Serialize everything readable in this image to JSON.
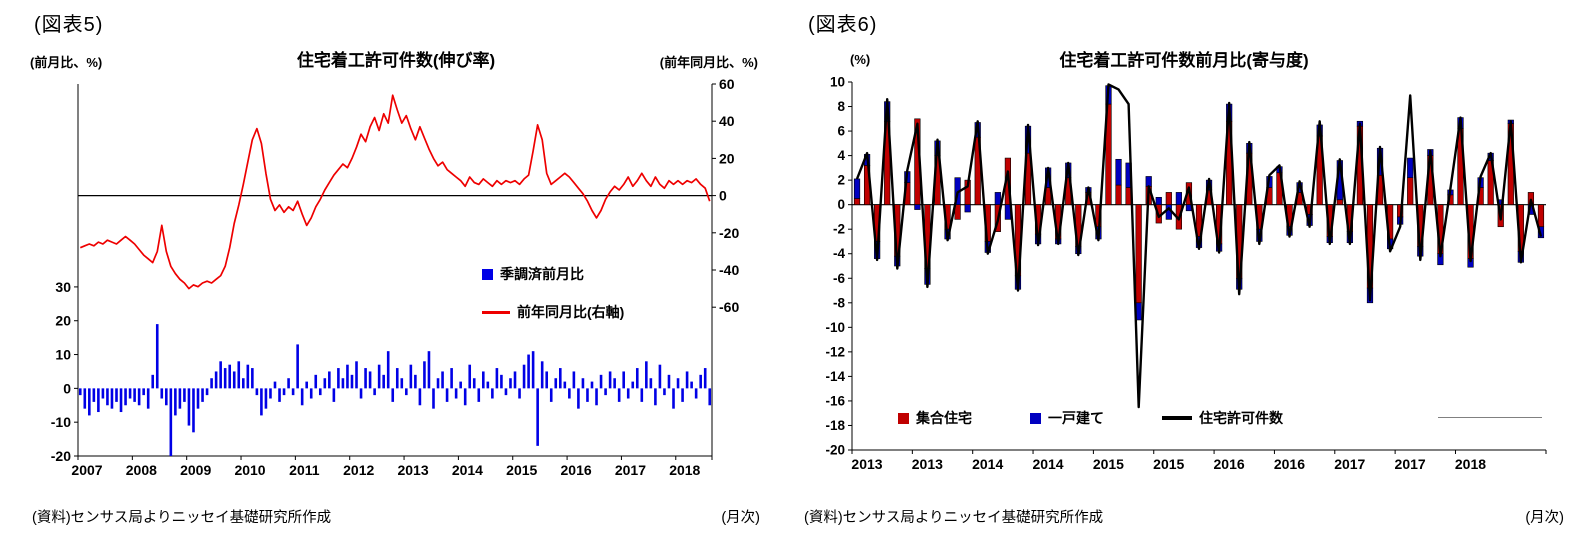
{
  "fig5": {
    "caption": "(図表5)",
    "title": "住宅着工許可件数(伸び率)",
    "left_axis_label": "(前月比、%)",
    "right_axis_label": "(前年同月比、%)",
    "source": "(資料)センサス局よりニッセイ基礎研究所作成",
    "freq_note": "(月次)"
  },
  "fig6": {
    "caption": "(図表6)",
    "title": "住宅着工許可件数前月比(寄与度)",
    "axis_unit": "(%)",
    "source": "(資料)センサス局よりニッセイ基礎研究所作成",
    "freq_note": "(月次)"
  },
  "chart_data": [
    {
      "type": "bar",
      "subtype": "bar+line-dual-axis",
      "title": "住宅着工許可件数(伸び率)",
      "x_start": "2007-01",
      "x_tick_every": 12,
      "x_tick_labels": [
        "2007",
        "2008",
        "2009",
        "2010",
        "2011",
        "2012",
        "2013",
        "2014",
        "2015",
        "2016",
        "2017",
        "2018"
      ],
      "left_axis": {
        "label": "(前月比、%)",
        "min": -20,
        "max": 90,
        "ticks": [
          30,
          20,
          10,
          0,
          -10,
          -20
        ]
      },
      "right_axis": {
        "label": "(前年同月比、%)",
        "min": -140,
        "max": 60,
        "ticks": [
          60,
          40,
          20,
          0,
          -20,
          -40,
          -60
        ]
      },
      "series": [
        {
          "name": "季調済前月比",
          "type": "bar",
          "axis": "left",
          "color": "#0000E6",
          "values": [
            -2,
            -6,
            -8,
            -4,
            -7,
            -3,
            -5,
            -6,
            -4,
            -7,
            -5,
            -3,
            -4,
            -5,
            -2,
            -6,
            4,
            19,
            -3,
            -5,
            -20,
            -8,
            -6,
            -4,
            -11,
            -13,
            -6,
            -4,
            -2,
            3,
            5,
            8,
            6,
            7,
            5,
            8,
            3,
            7,
            6,
            -2,
            -8,
            -6,
            -3,
            2,
            -4,
            -2,
            3,
            -2,
            13,
            -5,
            2,
            -3,
            4,
            -2,
            3,
            5,
            -4,
            6,
            3,
            7,
            4,
            8,
            -3,
            6,
            5,
            -2,
            7,
            4,
            11,
            -4,
            6,
            3,
            -2,
            7,
            4,
            -5,
            8,
            11,
            -6,
            3,
            5,
            -4,
            6,
            -3,
            2,
            -5,
            7,
            3,
            -4,
            5,
            2,
            -3,
            6,
            4,
            -2,
            3,
            5,
            -3,
            7,
            10,
            11,
            -17,
            8,
            5,
            -4,
            3,
            6,
            2,
            -3,
            5,
            -6,
            3,
            -4,
            2,
            -5,
            4,
            -2,
            5,
            3,
            -4,
            5,
            -3,
            2,
            6,
            -4,
            8,
            3,
            -5,
            7,
            -2,
            4,
            -6,
            3,
            -4,
            5,
            2,
            -3,
            4,
            6,
            -5
          ]
        },
        {
          "name": "前年同月比(右軸)",
          "type": "line",
          "axis": "right",
          "color": "#EE0000",
          "values": [
            -28,
            -27,
            -26,
            -27,
            -25,
            -26,
            -24,
            -25,
            -26,
            -24,
            -22,
            -24,
            -26,
            -29,
            -32,
            -34,
            -36,
            -30,
            -16,
            -30,
            -38,
            -42,
            -45,
            -47,
            -50,
            -48,
            -49,
            -47,
            -46,
            -47,
            -45,
            -43,
            -38,
            -28,
            -15,
            -5,
            6,
            18,
            30,
            36,
            28,
            12,
            -2,
            -8,
            -5,
            -9,
            -6,
            -8,
            -3,
            -10,
            -16,
            -12,
            -6,
            -2,
            3,
            7,
            11,
            14,
            17,
            15,
            20,
            26,
            33,
            29,
            37,
            42,
            35,
            44,
            39,
            54,
            46,
            39,
            43,
            36,
            30,
            37,
            31,
            25,
            20,
            16,
            18,
            14,
            12,
            10,
            8,
            5,
            10,
            7,
            6,
            9,
            7,
            5,
            8,
            6,
            8,
            7,
            8,
            6,
            9,
            11,
            24,
            38,
            30,
            12,
            6,
            8,
            10,
            12,
            10,
            7,
            4,
            1,
            -3,
            -8,
            -12,
            -8,
            -2,
            2,
            5,
            3,
            6,
            10,
            5,
            8,
            12,
            8,
            5,
            10,
            6,
            4,
            8,
            6,
            8,
            6,
            8,
            7,
            9,
            6,
            4,
            -3
          ]
        }
      ]
    },
    {
      "type": "bar",
      "subtype": "stacked-bar+line",
      "title": "住宅着工許可件数前月比(寄与度)",
      "x_start": "2013-01",
      "x_tick_every": 6,
      "x_tick_labels": [
        "2013",
        "2013",
        "2014",
        "2014",
        "2015",
        "2015",
        "2016",
        "2016",
        "2017",
        "2017",
        "2018"
      ],
      "y_axis": {
        "label": "(%)",
        "min": -20,
        "max": 10,
        "ticks": [
          10,
          8,
          6,
          4,
          2,
          0,
          -2,
          -4,
          -6,
          -8,
          -10,
          -12,
          -14,
          -16,
          -18,
          -20
        ]
      },
      "series": [
        {
          "name": "集合住宅",
          "type": "bar",
          "color": "#C00000",
          "values": [
            0.5,
            3.2,
            -3,
            6.8,
            -4.2,
            1.8,
            7,
            -5.2,
            4,
            -2,
            -1.2,
            2,
            5.5,
            -3,
            -2.2,
            3.8,
            -5.8,
            4.2,
            -2.4,
            1.4,
            -2.8,
            2.2,
            -3.4,
            1,
            -1.8,
            8.2,
            1.6,
            1.4,
            -8,
            1.5,
            -1.5,
            1,
            -2,
            1.8,
            -2.6,
            1.2,
            -3.2,
            6.8,
            -6,
            4.2,
            -2,
            1.4,
            2.6,
            -1.8,
            1,
            -0.8,
            5.6,
            -2.6,
            0.4,
            -2.2,
            6.4,
            -6.8,
            2.4,
            -2.8,
            -1,
            2.2,
            -3.4,
            4,
            -4,
            0.8,
            6.2,
            -4.4,
            1.4,
            3.6,
            -1.8,
            6.6,
            -3.8,
            1,
            -1.8
          ]
        },
        {
          "name": "一戸建て",
          "type": "bar",
          "color": "#0000C0",
          "values": [
            1.6,
            0.9,
            -1.4,
            1.6,
            -0.8,
            0.9,
            -0.4,
            -1.3,
            1.2,
            -0.8,
            2.2,
            -0.6,
            1.2,
            -0.9,
            1,
            -1.2,
            -1.1,
            2.2,
            -0.8,
            1.6,
            -0.4,
            1.2,
            -0.6,
            0.4,
            -1,
            1.5,
            2.1,
            2,
            -1.4,
            0.8,
            0.6,
            -1.2,
            1,
            -0.5,
            -0.9,
            0.8,
            -0.6,
            1.4,
            -0.9,
            0.8,
            -1,
            0.9,
            0.5,
            -0.7,
            0.8,
            -0.9,
            0.9,
            -0.5,
            3.2,
            -0.9,
            0.4,
            -1.2,
            2.2,
            -0.8,
            -0.6,
            1.6,
            -0.8,
            0.5,
            -0.9,
            0.4,
            0.9,
            -0.7,
            0.8,
            0.6,
            0.4,
            0.3,
            -0.9,
            -0.8,
            -0.9
          ]
        },
        {
          "name": "住宅許可件数",
          "type": "line",
          "color": "#000000",
          "values": [
            2.1,
            4.2,
            -4.5,
            8.6,
            -5.2,
            2.8,
            6.6,
            -6.7,
            5.3,
            -2.9,
            1,
            1.5,
            6.8,
            -4,
            -1.3,
            2.7,
            -7,
            6.5,
            -3.3,
            3,
            -3.2,
            3.4,
            -4.1,
            1.4,
            -2.9,
            9.8,
            9.4,
            8.2,
            -16.5,
            1.5,
            -1,
            -0.3,
            -1.2,
            1.4,
            -3.6,
            2.1,
            -3.9,
            8.3,
            -7.3,
            5.1,
            -3.2,
            2.4,
            3.2,
            -2.6,
            1.9,
            -1.8,
            6.8,
            -3.2,
            3.7,
            -3.2,
            6.6,
            -7.8,
            4.7,
            -3.8,
            -1.8,
            8.9,
            -4.5,
            4.4,
            -4.2,
            1.3,
            7.1,
            -4.6,
            2.3,
            4.2,
            -1.2,
            6.8,
            -4.7,
            0.4,
            -2.6
          ]
        }
      ]
    }
  ]
}
